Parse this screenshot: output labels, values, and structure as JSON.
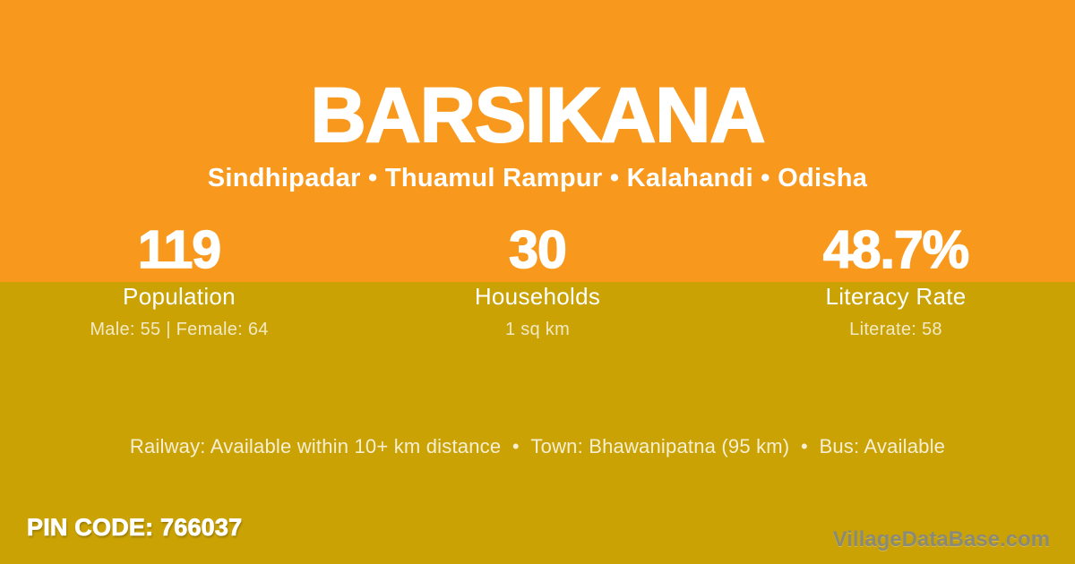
{
  "header": {
    "title": "BARSIKANA",
    "subtitle": "Sindhipadar • Thuamul Rampur • Kalahandi • Odisha"
  },
  "stats": {
    "items": [
      {
        "value": "119",
        "label": "Population",
        "sub": "Male: 55 | Female: 64"
      },
      {
        "value": "30",
        "label": "Households",
        "sub": "1 sq km"
      },
      {
        "value": "48.7%",
        "label": "Literacy Rate",
        "sub": "Literate: 58"
      }
    ]
  },
  "facts": {
    "line": "Railway: Available within 10+ km distance  •  Town: Bhawanipatna (95 km)  •  Bus: Available"
  },
  "footer": {
    "pin_code": "PIN CODE: 766037",
    "watermark": "VillageDataBase.com"
  },
  "colors": {
    "orange": "#F8991E",
    "gold": "#CAA204",
    "cream": "#F2E9C5",
    "facts": "#F7EFD3",
    "white": "#FFFFFF",
    "watermark_gray": "#8A8A78"
  }
}
